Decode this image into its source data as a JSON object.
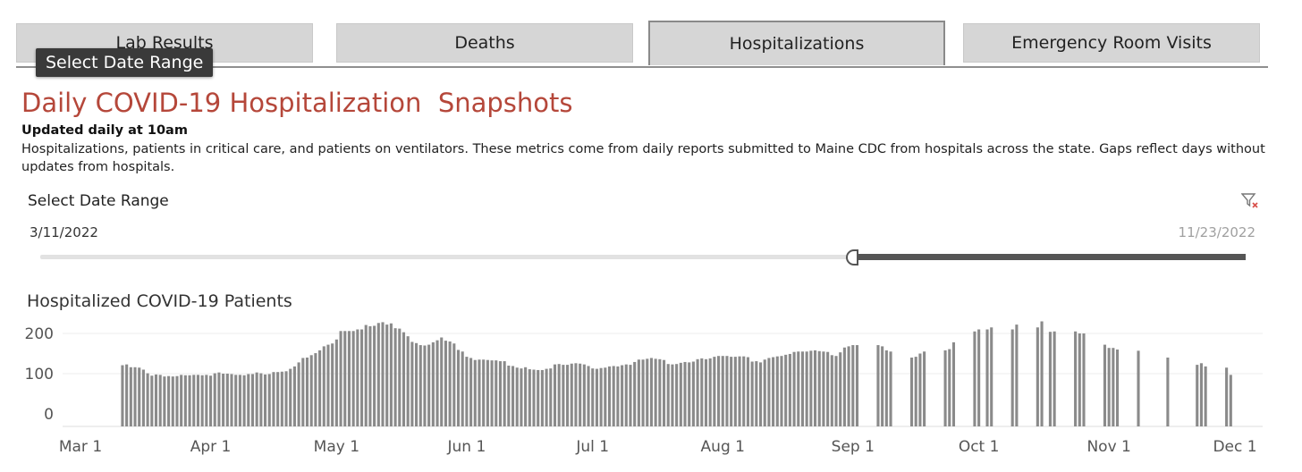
{
  "tabs": [
    {
      "label": "Lab Results",
      "active": false
    },
    {
      "label": "Deaths",
      "active": false
    },
    {
      "label": "Hospitalizations",
      "active": true
    },
    {
      "label": "Emergency Room Visits",
      "active": false
    }
  ],
  "tooltip": "Select Date Range",
  "header": {
    "title": "Daily COVID-19 Hospitalization  Snapshots",
    "updated": "Updated daily at 10am",
    "description": "Hospitalizations, patients in critical care, and patients on ventilators. These metrics come from daily reports submitted to Maine CDC from hospitals across the state. Gaps reflect days without updates from hospitals."
  },
  "date_range": {
    "label": "Select Date Range",
    "start": "3/11/2022",
    "end": "11/23/2022",
    "filter_icon": "clear-filter-icon"
  },
  "colors": {
    "title": "#b5473a",
    "bars": "#8a8a8a",
    "tab_background": "#d6d6d6"
  },
  "chart_data": {
    "type": "bar",
    "title": "Hospitalized COVID-19 Patients",
    "y_ticks": [
      0,
      100,
      200
    ],
    "x_ticks": [
      "Mar 1",
      "Apr 1",
      "May 1",
      "Jun 1",
      "Jul 1",
      "Aug 1",
      "Sep 1",
      "Oct 1",
      "Nov 1",
      "Dec 1"
    ],
    "x_range": [
      "2022-03-01",
      "2022-12-01"
    ],
    "ylim": [
      -25,
      235
    ],
    "grid": true,
    "start_date": "2022-03-11",
    "values": [
      121,
      123,
      116,
      116,
      115,
      110,
      101,
      95,
      98,
      97,
      93,
      94,
      93,
      94,
      97,
      96,
      96,
      97,
      97,
      96,
      97,
      95,
      101,
      103,
      100,
      100,
      99,
      97,
      97,
      96,
      99,
      99,
      103,
      101,
      98,
      99,
      104,
      104,
      105,
      106,
      112,
      118,
      128,
      139,
      140,
      146,
      151,
      158,
      168,
      172,
      175,
      185,
      206,
      206,
      206,
      206,
      210,
      210,
      221,
      218,
      219,
      226,
      228,
      222,
      225,
      213,
      212,
      203,
      193,
      179,
      176,
      171,
      170,
      172,
      178,
      183,
      190,
      182,
      180,
      175,
      159,
      155,
      142,
      139,
      134,
      135,
      135,
      134,
      133,
      133,
      131,
      131,
      120,
      119,
      115,
      113,
      116,
      111,
      110,
      109,
      109,
      112,
      113,
      123,
      124,
      122,
      122,
      125,
      126,
      125,
      123,
      119,
      113,
      112,
      114,
      115,
      118,
      119,
      118,
      121,
      123,
      122,
      129,
      135,
      135,
      137,
      139,
      137,
      136,
      134,
      124,
      123,
      124,
      127,
      129,
      128,
      130,
      136,
      138,
      136,
      138,
      142,
      144,
      144,
      144,
      142,
      142,
      143,
      143,
      141,
      130,
      131,
      128,
      135,
      139,
      141,
      143,
      144,
      147,
      149,
      154,
      155,
      155,
      155,
      157,
      158,
      156,
      155,
      154,
      146,
      144,
      153,
      165,
      168,
      171,
      171,
      null,
      null,
      null,
      null,
      171,
      168,
      158,
      155,
      null,
      null,
      null,
      null,
      140,
      142,
      150,
      155,
      null,
      null,
      null,
      null,
      158,
      161,
      178,
      null,
      null,
      null,
      null,
      205,
      210,
      null,
      210,
      215,
      null,
      null,
      null,
      null,
      210,
      222,
      null,
      null,
      null,
      null,
      215,
      230,
      null,
      204,
      205,
      null,
      null,
      null,
      null,
      205,
      200,
      200,
      null,
      null,
      null,
      null,
      172,
      164,
      164,
      160,
      null,
      null,
      null,
      null,
      157,
      null,
      null,
      null,
      null,
      null,
      null,
      140,
      null,
      null,
      null,
      null,
      null,
      null,
      122,
      126,
      118,
      null,
      null,
      null,
      null,
      115,
      97
    ]
  }
}
